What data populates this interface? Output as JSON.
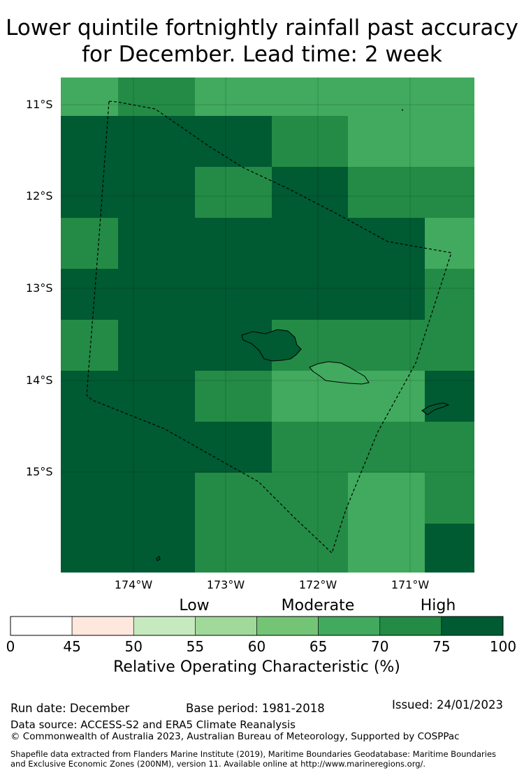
{
  "title_line1": "Lower quintile fortnightly rainfall past accuracy",
  "title_line2": "for December. Lead time: 2 week",
  "map": {
    "lat_labels": [
      "11°S",
      "12°S",
      "13°S",
      "14°S",
      "15°S"
    ],
    "lon_labels": [
      "174°W",
      "173°W",
      "172°W",
      "171°W"
    ],
    "grid_colors_rows": [
      [
        "#41aa5e",
        "#238b45",
        "#41aa5e",
        "#41aa5e",
        "#41aa5e",
        "#41aa5e"
      ],
      [
        "#005a32",
        "#005a32",
        "#005a32",
        "#238b45",
        "#41aa5e",
        "#41aa5e"
      ],
      [
        "#005a32",
        "#005a32",
        "#238b45",
        "#005a32",
        "#238b45",
        "#238b45"
      ],
      [
        "#238b45",
        "#005a32",
        "#005a32",
        "#005a32",
        "#005a32",
        "#41aa5e"
      ],
      [
        "#005a32",
        "#005a32",
        "#005a32",
        "#005a32",
        "#005a32",
        "#238b45"
      ],
      [
        "#238b45",
        "#005a32",
        "#005a32",
        "#238b45",
        "#238b45",
        "#238b45"
      ],
      [
        "#005a32",
        "#005a32",
        "#238b45",
        "#41aa5e",
        "#41aa5e",
        "#005a32"
      ],
      [
        "#005a32",
        "#005a32",
        "#005a32",
        "#238b45",
        "#238b45",
        "#238b45"
      ],
      [
        "#005a32",
        "#005a32",
        "#238b45",
        "#238b45",
        "#41aa5e",
        "#238b45"
      ],
      [
        "#005a32",
        "#005a32",
        "#238b45",
        "#238b45",
        "#41aa5e",
        "#005a32"
      ]
    ]
  },
  "colorbar": {
    "categories": [
      "Low",
      "Moderate",
      "High"
    ],
    "ticks": [
      "0",
      "45",
      "50",
      "55",
      "60",
      "65",
      "70",
      "75",
      "100"
    ],
    "colors": [
      "#ffffff",
      "#fee8de",
      "#c7e9c0",
      "#a1d99b",
      "#74c476",
      "#41aa5e",
      "#238b45",
      "#005a32"
    ],
    "label": "Relative Operating Characteristic (%)"
  },
  "footer": {
    "run_date": "Run date: December",
    "base_period": "Base period: 1981-2018",
    "issued": "Issued: 24/01/2023",
    "data_source": "Data source: ACCESS-S2 and ERA5 Climate Reanalysis",
    "copyright": "© Commonwealth of Australia 2023, Australian Bureau of Meteorology, Supported by COSPPac",
    "shapefile_line1": "Shapefile data extracted from Flanders Marine Institute (2019), Maritime Boundaries Geodatabase: Maritime Boundaries",
    "shapefile_line2": "and Exclusive Economic Zones (200NM), version 11. Available online at http://www.marineregions.org/."
  }
}
